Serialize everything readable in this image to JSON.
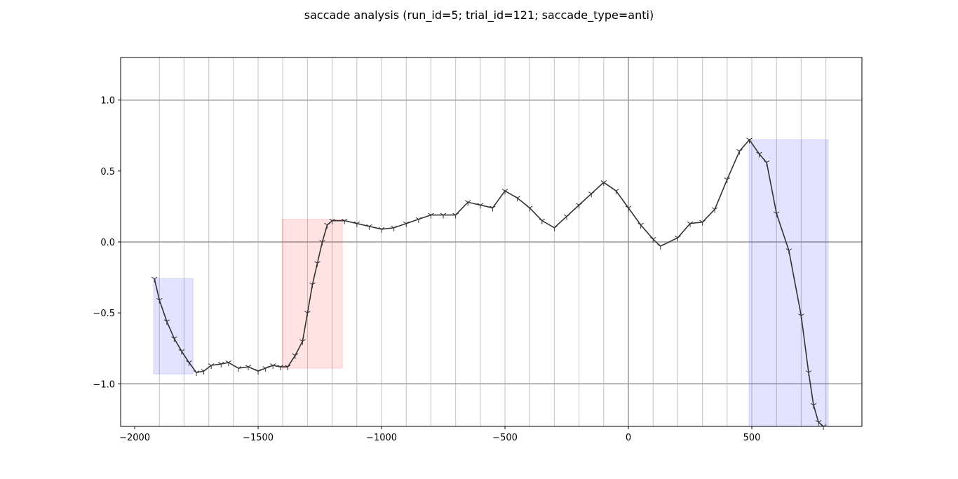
{
  "chart_data": {
    "type": "line",
    "title": "saccade analysis (run_id=5; trial_id=121; saccade_type=anti)",
    "x": [
      -1920,
      -1900,
      -1870,
      -1840,
      -1810,
      -1780,
      -1750,
      -1720,
      -1690,
      -1650,
      -1620,
      -1580,
      -1540,
      -1500,
      -1470,
      -1440,
      -1410,
      -1380,
      -1350,
      -1320,
      -1300,
      -1280,
      -1260,
      -1240,
      -1220,
      -1200,
      -1150,
      -1100,
      -1050,
      -1000,
      -950,
      -900,
      -850,
      -800,
      -750,
      -700,
      -650,
      -600,
      -550,
      -500,
      -450,
      -400,
      -350,
      -300,
      -250,
      -200,
      -150,
      -100,
      -50,
      0,
      50,
      100,
      130,
      200,
      250,
      300,
      350,
      400,
      450,
      490,
      530,
      560,
      600,
      650,
      700,
      730,
      750,
      770,
      790
    ],
    "series": [
      {
        "color": "#333333",
        "values": [
          -0.26,
          -0.41,
          -0.56,
          -0.68,
          -0.77,
          -0.85,
          -0.92,
          -0.91,
          -0.87,
          -0.86,
          -0.85,
          -0.89,
          -0.88,
          -0.91,
          -0.89,
          -0.87,
          -0.88,
          -0.88,
          -0.8,
          -0.7,
          -0.5,
          -0.3,
          -0.15,
          0.0,
          0.12,
          0.15,
          0.15,
          0.13,
          0.11,
          0.09,
          0.1,
          0.13,
          0.16,
          0.19,
          0.19,
          0.19,
          0.28,
          0.26,
          0.24,
          0.36,
          0.31,
          0.24,
          0.15,
          0.1,
          0.18,
          0.26,
          0.34,
          0.42,
          0.36,
          0.24,
          0.12,
          0.02,
          -0.03,
          0.03,
          0.13,
          0.14,
          0.23,
          0.44,
          0.64,
          0.72,
          0.62,
          0.56,
          0.2,
          -0.06,
          -0.52,
          -0.92,
          -1.15,
          -1.27,
          -1.3
        ]
      }
    ],
    "regions": [
      {
        "x0": -1923,
        "x1": -1764,
        "y0": -0.93,
        "y1": -0.26,
        "color": "#0000ff"
      },
      {
        "x0": -1403,
        "x1": -1159,
        "y0": -0.89,
        "y1": 0.16,
        "color": "#ff0000"
      },
      {
        "x0": 489,
        "x1": 810,
        "y0": -1.3,
        "y1": 0.72,
        "color": "#0000ff"
      }
    ],
    "vlines": [
      -1900,
      -1800,
      -1700,
      -1600,
      -1500,
      -1400,
      -1300,
      -1200,
      -1100,
      -1000,
      -900,
      -800,
      -700,
      -600,
      -500,
      -400,
      -300,
      -200,
      -100,
      0,
      100,
      200,
      300,
      400,
      500,
      600,
      700,
      800
    ],
    "hlines": [
      -1,
      0,
      1
    ],
    "xlim": [
      -2057,
      946
    ],
    "ylim": [
      -1.3,
      1.3
    ],
    "xticks": [
      {
        "value": -2000,
        "label": "−2000"
      },
      {
        "value": -1500,
        "label": "−1500"
      },
      {
        "value": -1000,
        "label": "−1000"
      },
      {
        "value": -500,
        "label": "−500"
      },
      0,
      500
    ],
    "yticks": [
      {
        "value": -1.0,
        "label": "−1.0"
      },
      {
        "value": -0.5,
        "label": "−0.5"
      },
      {
        "value": 0.0,
        "label": "0.0"
      },
      {
        "value": 0.5,
        "label": "0.5"
      },
      {
        "value": 1.0,
        "label": "1.0"
      }
    ]
  }
}
